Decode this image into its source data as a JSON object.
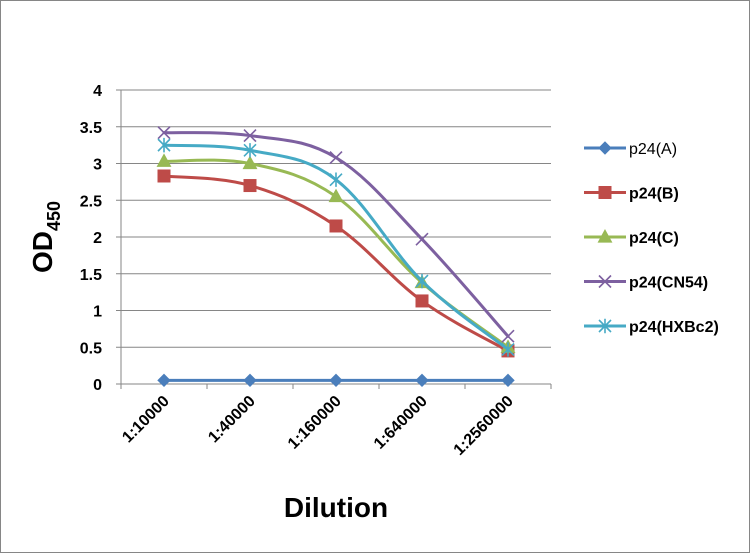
{
  "chart_data": {
    "type": "line",
    "title": "",
    "xlabel": "Dilution",
    "ylabel": {
      "main": "OD",
      "sub": "450"
    },
    "categories": [
      "1:10000",
      "1:40000",
      "1:160000",
      "1:640000",
      "1:2560000"
    ],
    "ylim": [
      0,
      4
    ],
    "yticks": [
      "0",
      "0.5",
      "1",
      "1.5",
      "2",
      "2.5",
      "3",
      "3.5",
      "4"
    ],
    "grid": true,
    "legend_position": "right",
    "series": [
      {
        "name": "p24(A)",
        "bold": false,
        "color": "#4A7EBB",
        "marker": "diamond",
        "values": [
          0.05,
          0.05,
          0.05,
          0.05,
          0.05
        ]
      },
      {
        "name": "p24(B)",
        "bold": true,
        "color": "#BE4B48",
        "marker": "square",
        "values": [
          2.83,
          2.7,
          2.15,
          1.13,
          0.45
        ]
      },
      {
        "name": "p24(C)",
        "bold": true,
        "color": "#98B954",
        "marker": "triangle",
        "values": [
          3.03,
          3.0,
          2.55,
          1.38,
          0.5
        ]
      },
      {
        "name": "p24(CN54)",
        "bold": true,
        "color": "#7D60A0",
        "marker": "x",
        "values": [
          3.42,
          3.38,
          3.08,
          1.97,
          0.65
        ]
      },
      {
        "name": "p24(HXBc2)",
        "bold": true,
        "color": "#46AAC5",
        "marker": "star",
        "values": [
          3.25,
          3.18,
          2.78,
          1.4,
          0.47
        ]
      }
    ]
  }
}
